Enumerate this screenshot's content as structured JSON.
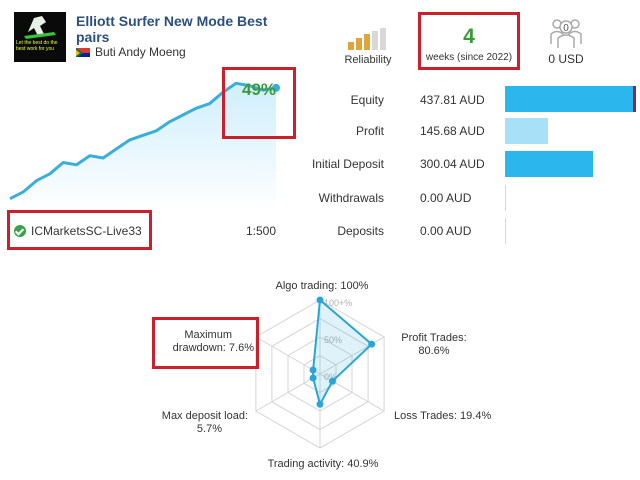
{
  "header": {
    "title": "Elliott Surfer New Mode Best pairs",
    "author": "Buti Andy Moeng",
    "avatar_text": "Let the best do the best work for you"
  },
  "reliability": {
    "label": "Reliability",
    "icon": "reliability-bars-icon",
    "level": 0.6
  },
  "weeks": {
    "value": "4",
    "label": "weeks (since 2022)"
  },
  "subscribers": {
    "icon": "subscribers-icon",
    "count": "0",
    "label": "0 USD"
  },
  "growth": {
    "value": "49%",
    "chart_data": {
      "type": "area",
      "x": [
        0,
        1,
        2,
        3,
        4,
        5,
        6,
        7,
        8,
        9,
        10,
        11,
        12,
        13,
        14,
        15,
        16,
        17,
        18,
        19,
        20
      ],
      "y": [
        0,
        3,
        8,
        11,
        16,
        15,
        19,
        18,
        22,
        26,
        28,
        30,
        34,
        37,
        40,
        42,
        47,
        51,
        50,
        48,
        49
      ],
      "ylim": [
        -5,
        56
      ]
    }
  },
  "account": {
    "broker": "ICMarketsSC-Live33",
    "leverage": "1:500"
  },
  "stats": [
    {
      "label": "Equity",
      "value": "437.81 AUD",
      "fill": 1.0,
      "color": "#2bb6ee",
      "edge": "#8a2a4a"
    },
    {
      "label": "Profit",
      "value": "145.68 AUD",
      "fill": 0.337,
      "color": "#a8e0f8",
      "edge": ""
    },
    {
      "label": "Initial Deposit",
      "value": "300.04 AUD",
      "fill": 0.685,
      "color": "#2bb6ee",
      "edge": ""
    },
    {
      "label": "Withdrawals",
      "value": "0.00 AUD",
      "fill": 0,
      "color": "#2bb6ee",
      "edge": ""
    },
    {
      "label": "Deposits",
      "value": "0.00 AUD",
      "fill": 0,
      "color": "#2bb6ee",
      "edge": ""
    }
  ],
  "radar": {
    "labels": {
      "algo": "Algo trading: 100%",
      "profit_title": "Profit Trades:",
      "profit_value": "80.6%",
      "loss": "Loss Trades: 19.4%",
      "activity": "Trading activity: 40.9%",
      "deposit_title": "Max deposit load:",
      "deposit_value": "5.7%",
      "drawdown_title": "Maximum",
      "drawdown_value": "drawdown: 7.6%"
    },
    "scale_labels": [
      "100+%",
      "50%",
      "0%"
    ],
    "chart_data": {
      "type": "radar",
      "axes": [
        "Algo trading",
        "Profit Trades",
        "Loss Trades",
        "Trading activity",
        "Max deposit load",
        "Maximum drawdown"
      ],
      "values": [
        100,
        80.6,
        19.4,
        40.9,
        5.7,
        7.6
      ],
      "max": 100
    }
  }
}
